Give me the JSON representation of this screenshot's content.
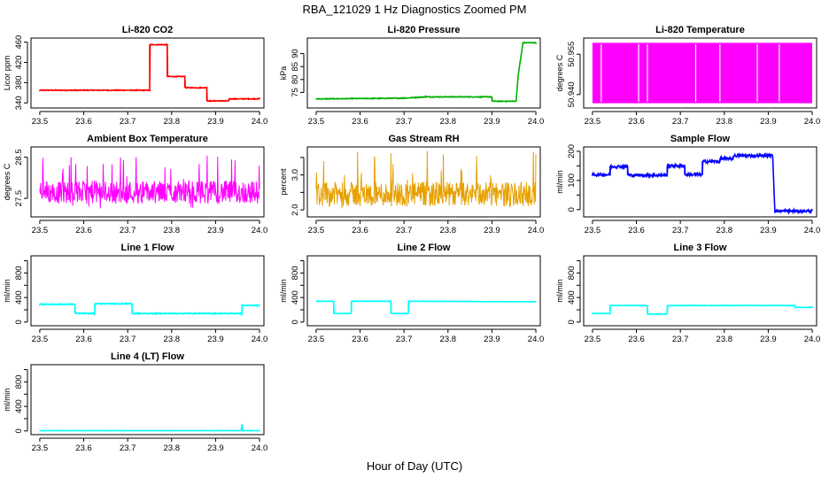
{
  "figure": {
    "title": "RBA_121029  1 Hz Diagnostics Zoomed PM",
    "xlabel": "Hour of Day (UTC)"
  },
  "chart_data": [
    {
      "type": "line",
      "title": "Li-820 CO2",
      "ylabel": "Licor ppm",
      "color": "#ff0000",
      "xlim": [
        23.48,
        24.01
      ],
      "ylim": [
        330,
        468
      ],
      "xticks": [
        23.5,
        23.6,
        23.7,
        23.8,
        23.9,
        24.0
      ],
      "yticks": [
        340,
        380,
        420,
        460
      ],
      "noise": 0.8,
      "x": [
        23.5,
        23.75,
        23.75,
        23.79,
        23.79,
        23.83,
        23.83,
        23.88,
        23.88,
        23.93,
        23.93,
        24.0
      ],
      "y": [
        365,
        365,
        455,
        455,
        392,
        392,
        370,
        370,
        344,
        344,
        348,
        348
      ]
    },
    {
      "type": "line",
      "title": "Li-820 Pressure",
      "ylabel": "kPa",
      "color": "#00b000",
      "xlim": [
        23.48,
        24.01
      ],
      "ylim": [
        69,
        96
      ],
      "xticks": [
        23.5,
        23.6,
        23.7,
        23.8,
        23.9,
        24.0
      ],
      "yticks": [
        75,
        80,
        85,
        90
      ],
      "noise": 0.15,
      "x": [
        23.5,
        23.7,
        23.75,
        23.9,
        23.9,
        23.955,
        23.96,
        23.97,
        23.97,
        24.0
      ],
      "y": [
        72.5,
        72.8,
        73.3,
        73.3,
        71.6,
        71.6,
        82,
        93.5,
        94.2,
        94.2
      ]
    },
    {
      "type": "line",
      "title": "Li-820 Temperature",
      "ylabel": "degrees C",
      "color": "#ff00ff",
      "xlim": [
        23.48,
        24.01
      ],
      "ylim": [
        50.935,
        50.961
      ],
      "xticks": [
        23.5,
        23.6,
        23.7,
        23.8,
        23.9,
        24.0
      ],
      "yticks": [
        50.94,
        50.955
      ],
      "ytick_labels": [
        "50.940",
        "50.955"
      ],
      "fill_range": [
        50.937,
        50.959
      ],
      "gaps": [
        23.52,
        23.605,
        23.625,
        23.735,
        23.79,
        23.875,
        23.925
      ]
    },
    {
      "type": "line",
      "title": "Ambient Box Temperature",
      "ylabel": "degrees C",
      "color": "#ff00ff",
      "xlim": [
        23.48,
        24.01
      ],
      "ylim": [
        27.05,
        28.75
      ],
      "xticks": [
        23.5,
        23.6,
        23.7,
        23.8,
        23.9,
        24.0
      ],
      "yticks": [
        27.5,
        28.5
      ],
      "band": [
        27.25,
        28.55
      ],
      "center": 27.65,
      "spread": 0.28
    },
    {
      "type": "line",
      "title": "Gas Stream RH",
      "ylabel": "percent",
      "color": "#e6a000",
      "xlim": [
        23.48,
        24.01
      ],
      "ylim": [
        1.8,
        3.8
      ],
      "xticks": [
        23.5,
        23.6,
        23.7,
        23.8,
        23.9,
        24.0
      ],
      "yticks": [
        2.0,
        2.5,
        3.0,
        3.5
      ],
      "ytick_labels": [
        "2.0",
        "",
        "3.0",
        ""
      ],
      "band": [
        2.0,
        3.7
      ],
      "center": 2.45,
      "spread": 0.35
    },
    {
      "type": "line",
      "title": "Sample Flow",
      "ylabel": "ml/min",
      "color": "#0000ff",
      "xlim": [
        23.48,
        24.01
      ],
      "ylim": [
        -25,
        215
      ],
      "xticks": [
        23.5,
        23.6,
        23.7,
        23.8,
        23.9,
        24.0
      ],
      "yticks": [
        0,
        50,
        100,
        150,
        200
      ],
      "ytick_labels": [
        "0",
        "",
        "100",
        "",
        "200"
      ],
      "noise": 5,
      "x": [
        23.5,
        23.54,
        23.54,
        23.58,
        23.58,
        23.67,
        23.67,
        23.71,
        23.71,
        23.75,
        23.75,
        23.79,
        23.79,
        23.82,
        23.82,
        23.91,
        23.915,
        24.0
      ],
      "y": [
        120,
        120,
        148,
        148,
        118,
        118,
        150,
        150,
        120,
        120,
        165,
        165,
        175,
        175,
        185,
        185,
        -5,
        -5
      ]
    },
    {
      "type": "line",
      "title": "Line 1 Flow",
      "ylabel": "ml/min",
      "color": "#00ffff",
      "xlim": [
        23.48,
        24.01
      ],
      "ylim": [
        -60,
        1080
      ],
      "xticks": [
        23.5,
        23.6,
        23.7,
        23.8,
        23.9,
        24.0
      ],
      "yticks": [
        0,
        200,
        400,
        600,
        800,
        1000
      ],
      "ytick_labels": [
        "0",
        "",
        "400",
        "",
        "800",
        ""
      ],
      "noise": 8,
      "x": [
        23.5,
        23.58,
        23.58,
        23.625,
        23.625,
        23.71,
        23.71,
        23.96,
        23.96,
        24.0
      ],
      "y": [
        290,
        290,
        140,
        140,
        300,
        300,
        140,
        140,
        270,
        270
      ]
    },
    {
      "type": "line",
      "title": "Line 2 Flow",
      "ylabel": "ml/min",
      "color": "#00ffff",
      "xlim": [
        23.48,
        24.01
      ],
      "ylim": [
        -60,
        1080
      ],
      "xticks": [
        23.5,
        23.6,
        23.7,
        23.8,
        23.9,
        24.0
      ],
      "yticks": [
        0,
        200,
        400,
        600,
        800,
        1000
      ],
      "ytick_labels": [
        "0",
        "",
        "400",
        "",
        "800",
        ""
      ],
      "noise": 3,
      "x": [
        23.5,
        23.54,
        23.54,
        23.58,
        23.58,
        23.67,
        23.67,
        23.71,
        23.71,
        24.0
      ],
      "y": [
        340,
        340,
        140,
        140,
        340,
        340,
        140,
        140,
        340,
        330
      ]
    },
    {
      "type": "line",
      "title": "Line 3 Flow",
      "ylabel": "ml/min",
      "color": "#00ffff",
      "xlim": [
        23.48,
        24.01
      ],
      "ylim": [
        -60,
        1080
      ],
      "xticks": [
        23.5,
        23.6,
        23.7,
        23.8,
        23.9,
        24.0
      ],
      "yticks": [
        0,
        200,
        400,
        600,
        800,
        1000
      ],
      "ytick_labels": [
        "0",
        "",
        "400",
        "",
        "800",
        ""
      ],
      "noise": 4,
      "x": [
        23.5,
        23.54,
        23.54,
        23.625,
        23.625,
        23.67,
        23.67,
        23.96,
        23.96,
        24.0
      ],
      "y": [
        140,
        140,
        270,
        270,
        130,
        130,
        270,
        270,
        240,
        240
      ]
    },
    {
      "type": "line",
      "title": "Line 4 (LT) Flow",
      "ylabel": "ml/min",
      "color": "#00ffff",
      "xlim": [
        23.48,
        24.01
      ],
      "ylim": [
        -60,
        1080
      ],
      "xticks": [
        23.5,
        23.6,
        23.7,
        23.8,
        23.9,
        24.0
      ],
      "yticks": [
        0,
        200,
        400,
        600,
        800,
        1000
      ],
      "ytick_labels": [
        "0",
        "",
        "400",
        "",
        "800",
        ""
      ],
      "noise": 2,
      "x": [
        23.5,
        23.958,
        23.96,
        23.962,
        24.0
      ],
      "y": [
        5,
        5,
        110,
        5,
        5
      ]
    }
  ]
}
